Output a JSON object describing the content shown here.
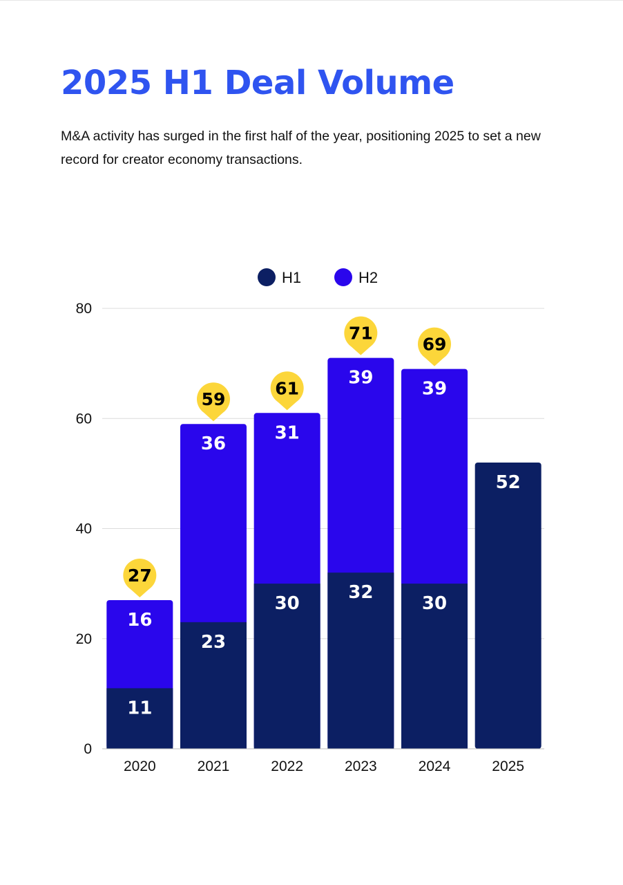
{
  "title": "2025 H1 Deal Volume",
  "subtitle": "M&A activity has surged in the first half of the year, positioning 2025 to set a new record for creator economy transactions.",
  "colors": {
    "title": "#2f54f0",
    "h1": "#0c1f63",
    "h2": "#2a06ec",
    "total_pin": "#fcd63a"
  },
  "chart_data": {
    "type": "bar",
    "stacked": true,
    "categories": [
      "2020",
      "2021",
      "2022",
      "2023",
      "2024",
      "2025"
    ],
    "series": [
      {
        "name": "H1",
        "values": [
          11,
          23,
          30,
          32,
          30,
          52
        ]
      },
      {
        "name": "H2",
        "values": [
          16,
          36,
          31,
          39,
          39,
          null
        ]
      }
    ],
    "totals": [
      27,
      59,
      61,
      71,
      69,
      null
    ],
    "ylim": [
      0,
      80
    ],
    "yticks": [
      "0",
      "20",
      "40",
      "60",
      "80"
    ],
    "grid": true,
    "legend_position": "top-center",
    "xlabel": "",
    "ylabel": ""
  }
}
